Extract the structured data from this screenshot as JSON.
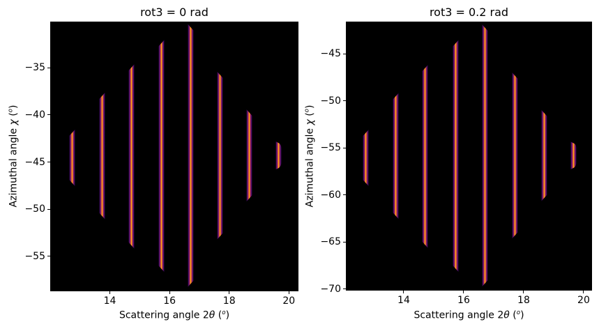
{
  "figure": {
    "background": "#ffffff",
    "axes_background": "#000000",
    "text_color": "#000000"
  },
  "colors": {
    "colormap": "inferno",
    "colormap_stops": [
      "#000004",
      "#420a68",
      "#932667",
      "#dd513a",
      "#fca50a",
      "#fcffa4"
    ],
    "stripe_core": "#fcffa4",
    "tick_color": "#000000"
  },
  "chart_data": [
    {
      "type": "heatmap",
      "title": "rot3 = 0 rad",
      "xlabel": "Scattering angle 2θ (°)",
      "ylabel": "Azimuthal angle χ (°)",
      "xlabel_parts": {
        "pre": "Scattering angle 2",
        "sym": "θ",
        "mid": " (",
        "sup": "o",
        "post": ")"
      },
      "ylabel_parts": {
        "pre": "Azimuthal angle ",
        "sym": "χ",
        "mid": " (",
        "sup": "o",
        "post": ")"
      },
      "xlim": [
        12.0,
        20.32
      ],
      "ylim": [
        -58.7,
        -30.1
      ],
      "xticks": [
        14,
        16,
        18,
        20
      ],
      "yticks": [
        -35,
        -40,
        -45,
        -50,
        -55
      ],
      "grid": false,
      "legend": "none",
      "description": "Simulated Debye-Scherrer diffraction rings in 2theta-chi space; each ring appears as a bright vertical segment on black",
      "stripes": [
        {
          "two_theta": 12.74,
          "chi_top": -41.5,
          "chi_bottom": -47.6,
          "tip": "right"
        },
        {
          "two_theta": 13.74,
          "chi_top": -37.6,
          "chi_bottom": -51.1,
          "tip": "right"
        },
        {
          "two_theta": 14.72,
          "chi_top": -34.6,
          "chi_bottom": -54.2,
          "tip": "right"
        },
        {
          "two_theta": 15.73,
          "chi_top": -32.0,
          "chi_bottom": -56.7,
          "tip": "right"
        },
        {
          "two_theta": 16.7,
          "chi_top": -30.3,
          "chi_bottom": -58.3,
          "tip": "left"
        },
        {
          "two_theta": 17.7,
          "chi_top": -35.4,
          "chi_bottom": -53.2,
          "tip": "left"
        },
        {
          "two_theta": 18.68,
          "chi_top": -39.4,
          "chi_bottom": -49.2,
          "tip": "left"
        },
        {
          "two_theta": 19.66,
          "chi_top": -42.8,
          "chi_bottom": -45.8,
          "tip": "cap-right"
        }
      ]
    },
    {
      "type": "heatmap",
      "title": "rot3 = 0.2 rad",
      "xlabel": "Scattering angle 2θ (°)",
      "ylabel": "Azimuthal angle χ (°)",
      "xlabel_parts": {
        "pre": "Scattering angle 2",
        "sym": "θ",
        "mid": " (",
        "sup": "o",
        "post": ")"
      },
      "ylabel_parts": {
        "pre": "Azimuthal angle ",
        "sym": "χ",
        "mid": " (",
        "sup": "o",
        "post": ")"
      },
      "xlim": [
        12.07,
        20.28
      ],
      "ylim": [
        -70.16,
        -41.56
      ],
      "xticks": [
        14,
        16,
        18,
        20
      ],
      "yticks": [
        -45,
        -50,
        -55,
        -60,
        -65,
        -70
      ],
      "grid": false,
      "legend": "none",
      "description": "Same rings with detector rotation rot3 = 0.2 rad; azimuthal positions shifted by about -11.5 degrees",
      "stripes": [
        {
          "two_theta": 12.74,
          "chi_top": -53.0,
          "chi_bottom": -59.1,
          "tip": "right"
        },
        {
          "two_theta": 13.74,
          "chi_top": -49.1,
          "chi_bottom": -62.6,
          "tip": "right"
        },
        {
          "two_theta": 14.72,
          "chi_top": -46.1,
          "chi_bottom": -65.7,
          "tip": "right"
        },
        {
          "two_theta": 15.73,
          "chi_top": -43.5,
          "chi_bottom": -68.2,
          "tip": "right"
        },
        {
          "two_theta": 16.7,
          "chi_top": -41.8,
          "chi_bottom": -69.8,
          "tip": "left"
        },
        {
          "two_theta": 17.7,
          "chi_top": -46.9,
          "chi_bottom": -64.7,
          "tip": "left"
        },
        {
          "two_theta": 18.68,
          "chi_top": -50.9,
          "chi_bottom": -60.7,
          "tip": "left"
        },
        {
          "two_theta": 19.66,
          "chi_top": -54.3,
          "chi_bottom": -57.3,
          "tip": "cap-right"
        }
      ]
    }
  ]
}
